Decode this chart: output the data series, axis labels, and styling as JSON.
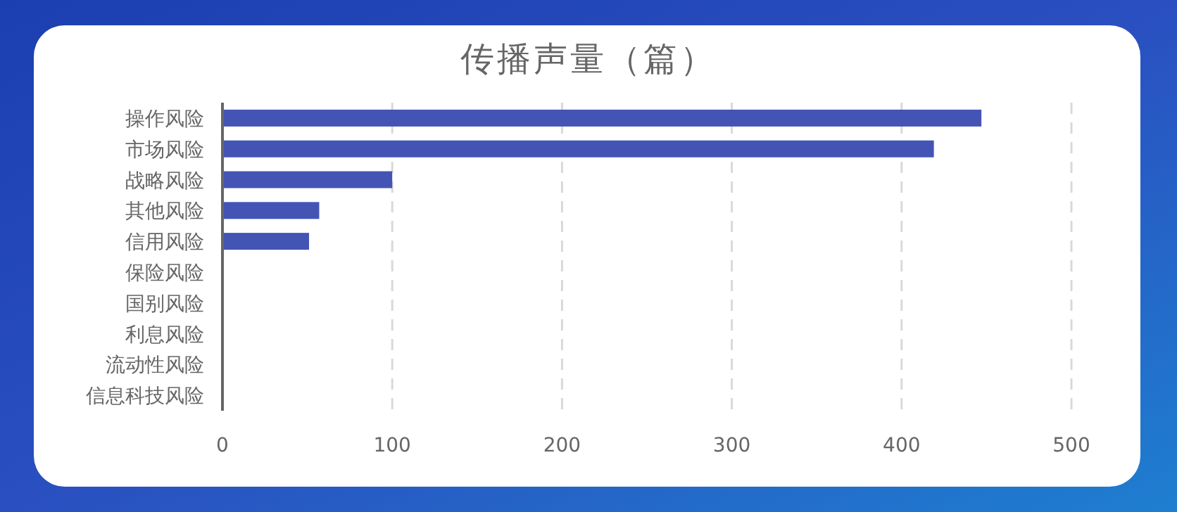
{
  "chart_data": {
    "type": "bar",
    "orientation": "horizontal",
    "title": "传播声量（篇）",
    "categories": [
      "操作风险",
      "市场风险",
      "战略风险",
      "其他风险",
      "信用风险",
      "保险风险",
      "国别风险",
      "利息风险",
      "流动性风险",
      "信息科技风险"
    ],
    "values": [
      447,
      419,
      100,
      57,
      51,
      0,
      0,
      0,
      0,
      0
    ],
    "color": "#4454b5",
    "xlim": [
      0,
      500
    ],
    "xticks": [
      0,
      100,
      200,
      300,
      400,
      500
    ],
    "grid": "x"
  }
}
